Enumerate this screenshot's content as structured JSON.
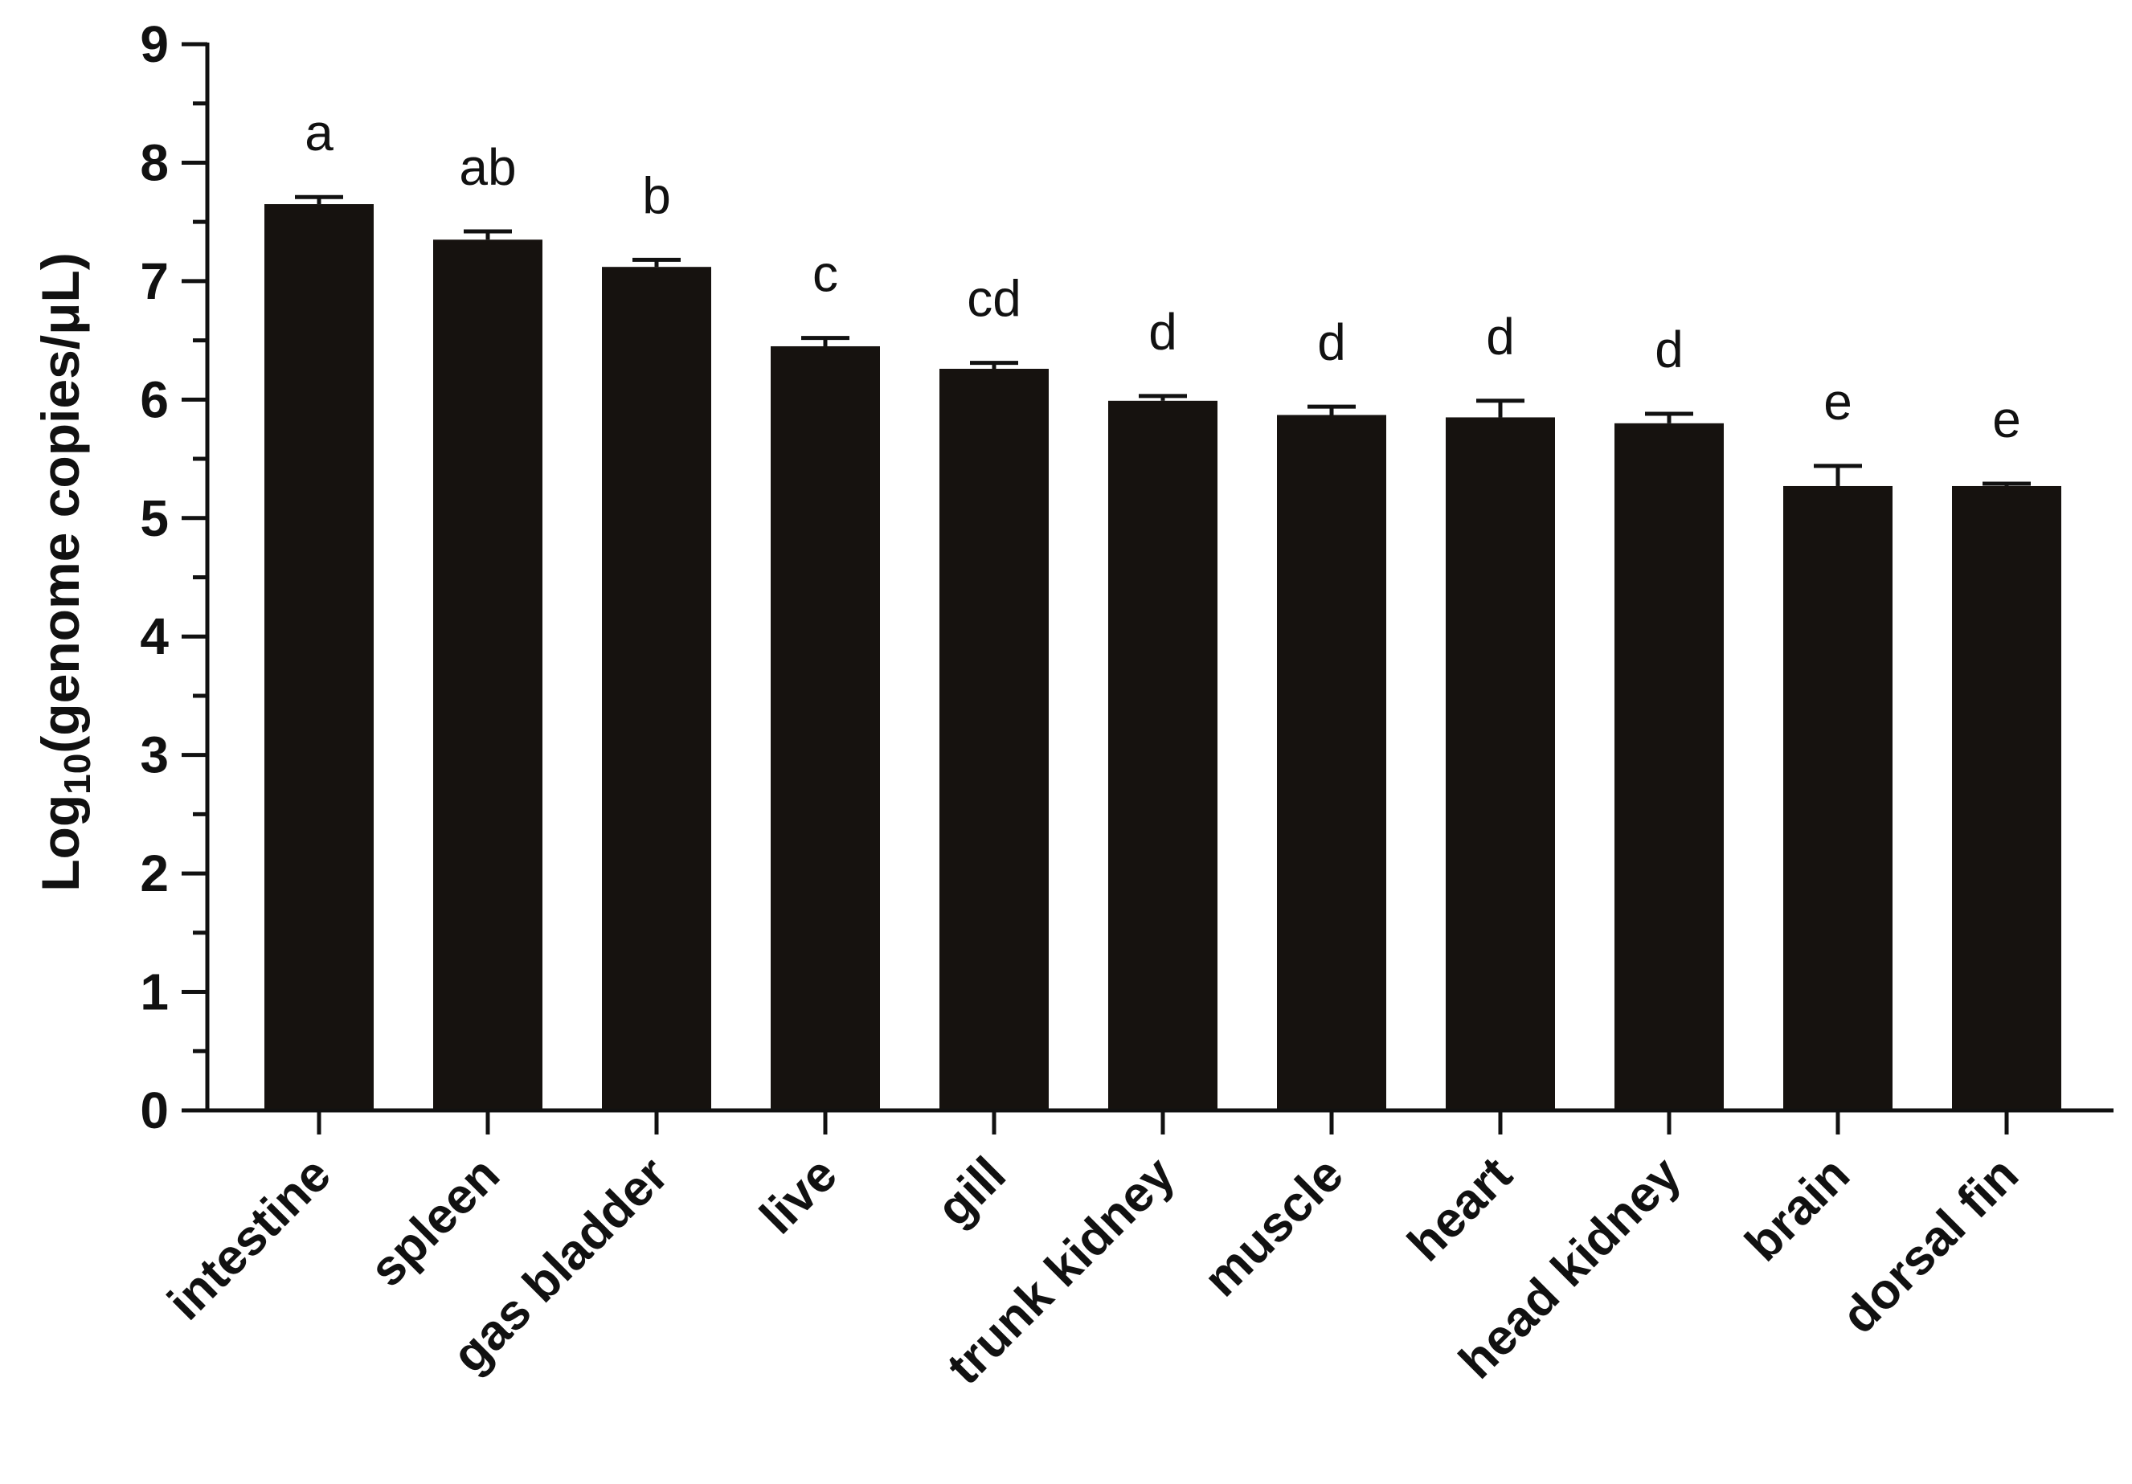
{
  "chart_data": {
    "type": "bar",
    "title": "",
    "xlabel": "",
    "ylabel": {
      "prefix": "Log",
      "subscript": "10",
      "suffix": "(genome copies/μL)"
    },
    "ylim": [
      0,
      9
    ],
    "yticks": [
      "0",
      "1",
      "2",
      "3",
      "4",
      "5",
      "6",
      "7",
      "8",
      "9"
    ],
    "categories": [
      "intestine",
      "spleen",
      "gas bladder",
      "live",
      "gill",
      "trunk kidney",
      "muscle",
      "heart",
      "head kidney",
      "brain",
      "dorsal fin"
    ],
    "values": [
      7.65,
      7.35,
      7.12,
      6.45,
      6.26,
      5.99,
      5.87,
      5.85,
      5.8,
      5.27,
      5.27
    ],
    "errors": [
      0.06,
      0.07,
      0.06,
      0.07,
      0.05,
      0.04,
      0.07,
      0.14,
      0.08,
      0.17,
      0.02
    ],
    "significance": [
      "a",
      "ab",
      "b",
      "c",
      "cd",
      "d",
      "d",
      "d",
      "d",
      "e",
      "e"
    ],
    "bar_color": "#16120f",
    "grid": false,
    "legend": "none"
  }
}
